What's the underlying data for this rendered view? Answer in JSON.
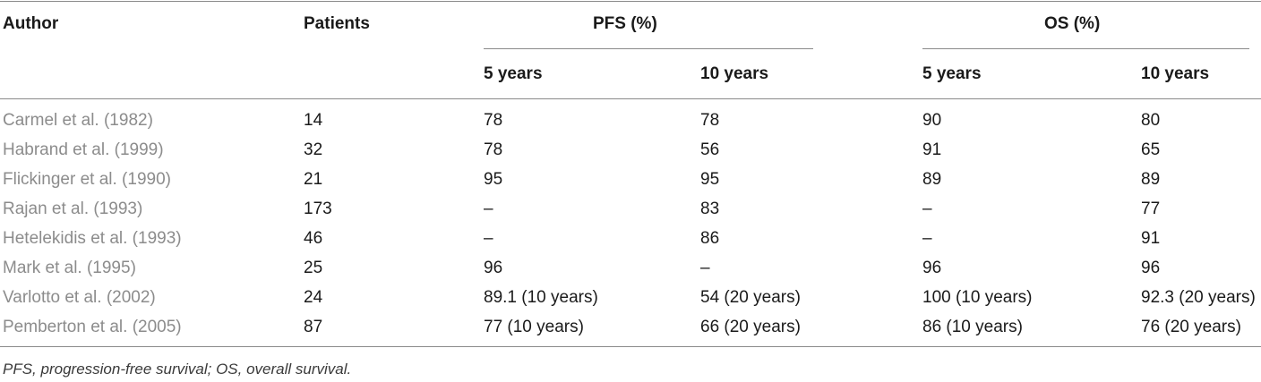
{
  "table": {
    "headers": {
      "author": "Author",
      "patients": "Patients",
      "pfs_group": "PFS (%)",
      "os_group": "OS (%)",
      "pfs_5": "5 years",
      "pfs_10": "10 years",
      "os_5": "5 years",
      "os_10": "10 years"
    },
    "rows": [
      {
        "author": "Carmel et al. (1982)",
        "patients": "14",
        "pfs5": "78",
        "pfs10": "78",
        "os5": "90",
        "os10": "80"
      },
      {
        "author": "Habrand et al. (1999)",
        "patients": "32",
        "pfs5": "78",
        "pfs10": "56",
        "os5": "91",
        "os10": "65"
      },
      {
        "author": "Flickinger et al. (1990)",
        "patients": "21",
        "pfs5": "95",
        "pfs10": "95",
        "os5": "89",
        "os10": "89"
      },
      {
        "author": "Rajan et al. (1993)",
        "patients": "173",
        "pfs5": "–",
        "pfs10": "83",
        "os5": "–",
        "os10": "77"
      },
      {
        "author": "Hetelekidis et al. (1993)",
        "patients": "46",
        "pfs5": "–",
        "pfs10": "86",
        "os5": "–",
        "os10": "91"
      },
      {
        "author": "Mark et al. (1995)",
        "patients": "25",
        "pfs5": "96",
        "pfs10": "–",
        "os5": "96",
        "os10": "96"
      },
      {
        "author": "Varlotto et al. (2002)",
        "patients": "24",
        "pfs5": "89.1 (10 years)",
        "pfs10": "54 (20 years)",
        "os5": "100 (10 years)",
        "os10": "92.3 (20 years)"
      },
      {
        "author": "Pemberton et al. (2005)",
        "patients": "87",
        "pfs5": "77 (10 years)",
        "pfs10": "66 (20 years)",
        "os5": "86 (10 years)",
        "os10": "76 (20 years)"
      }
    ],
    "footnote": "PFS, progression-free survival; OS, overall survival."
  }
}
